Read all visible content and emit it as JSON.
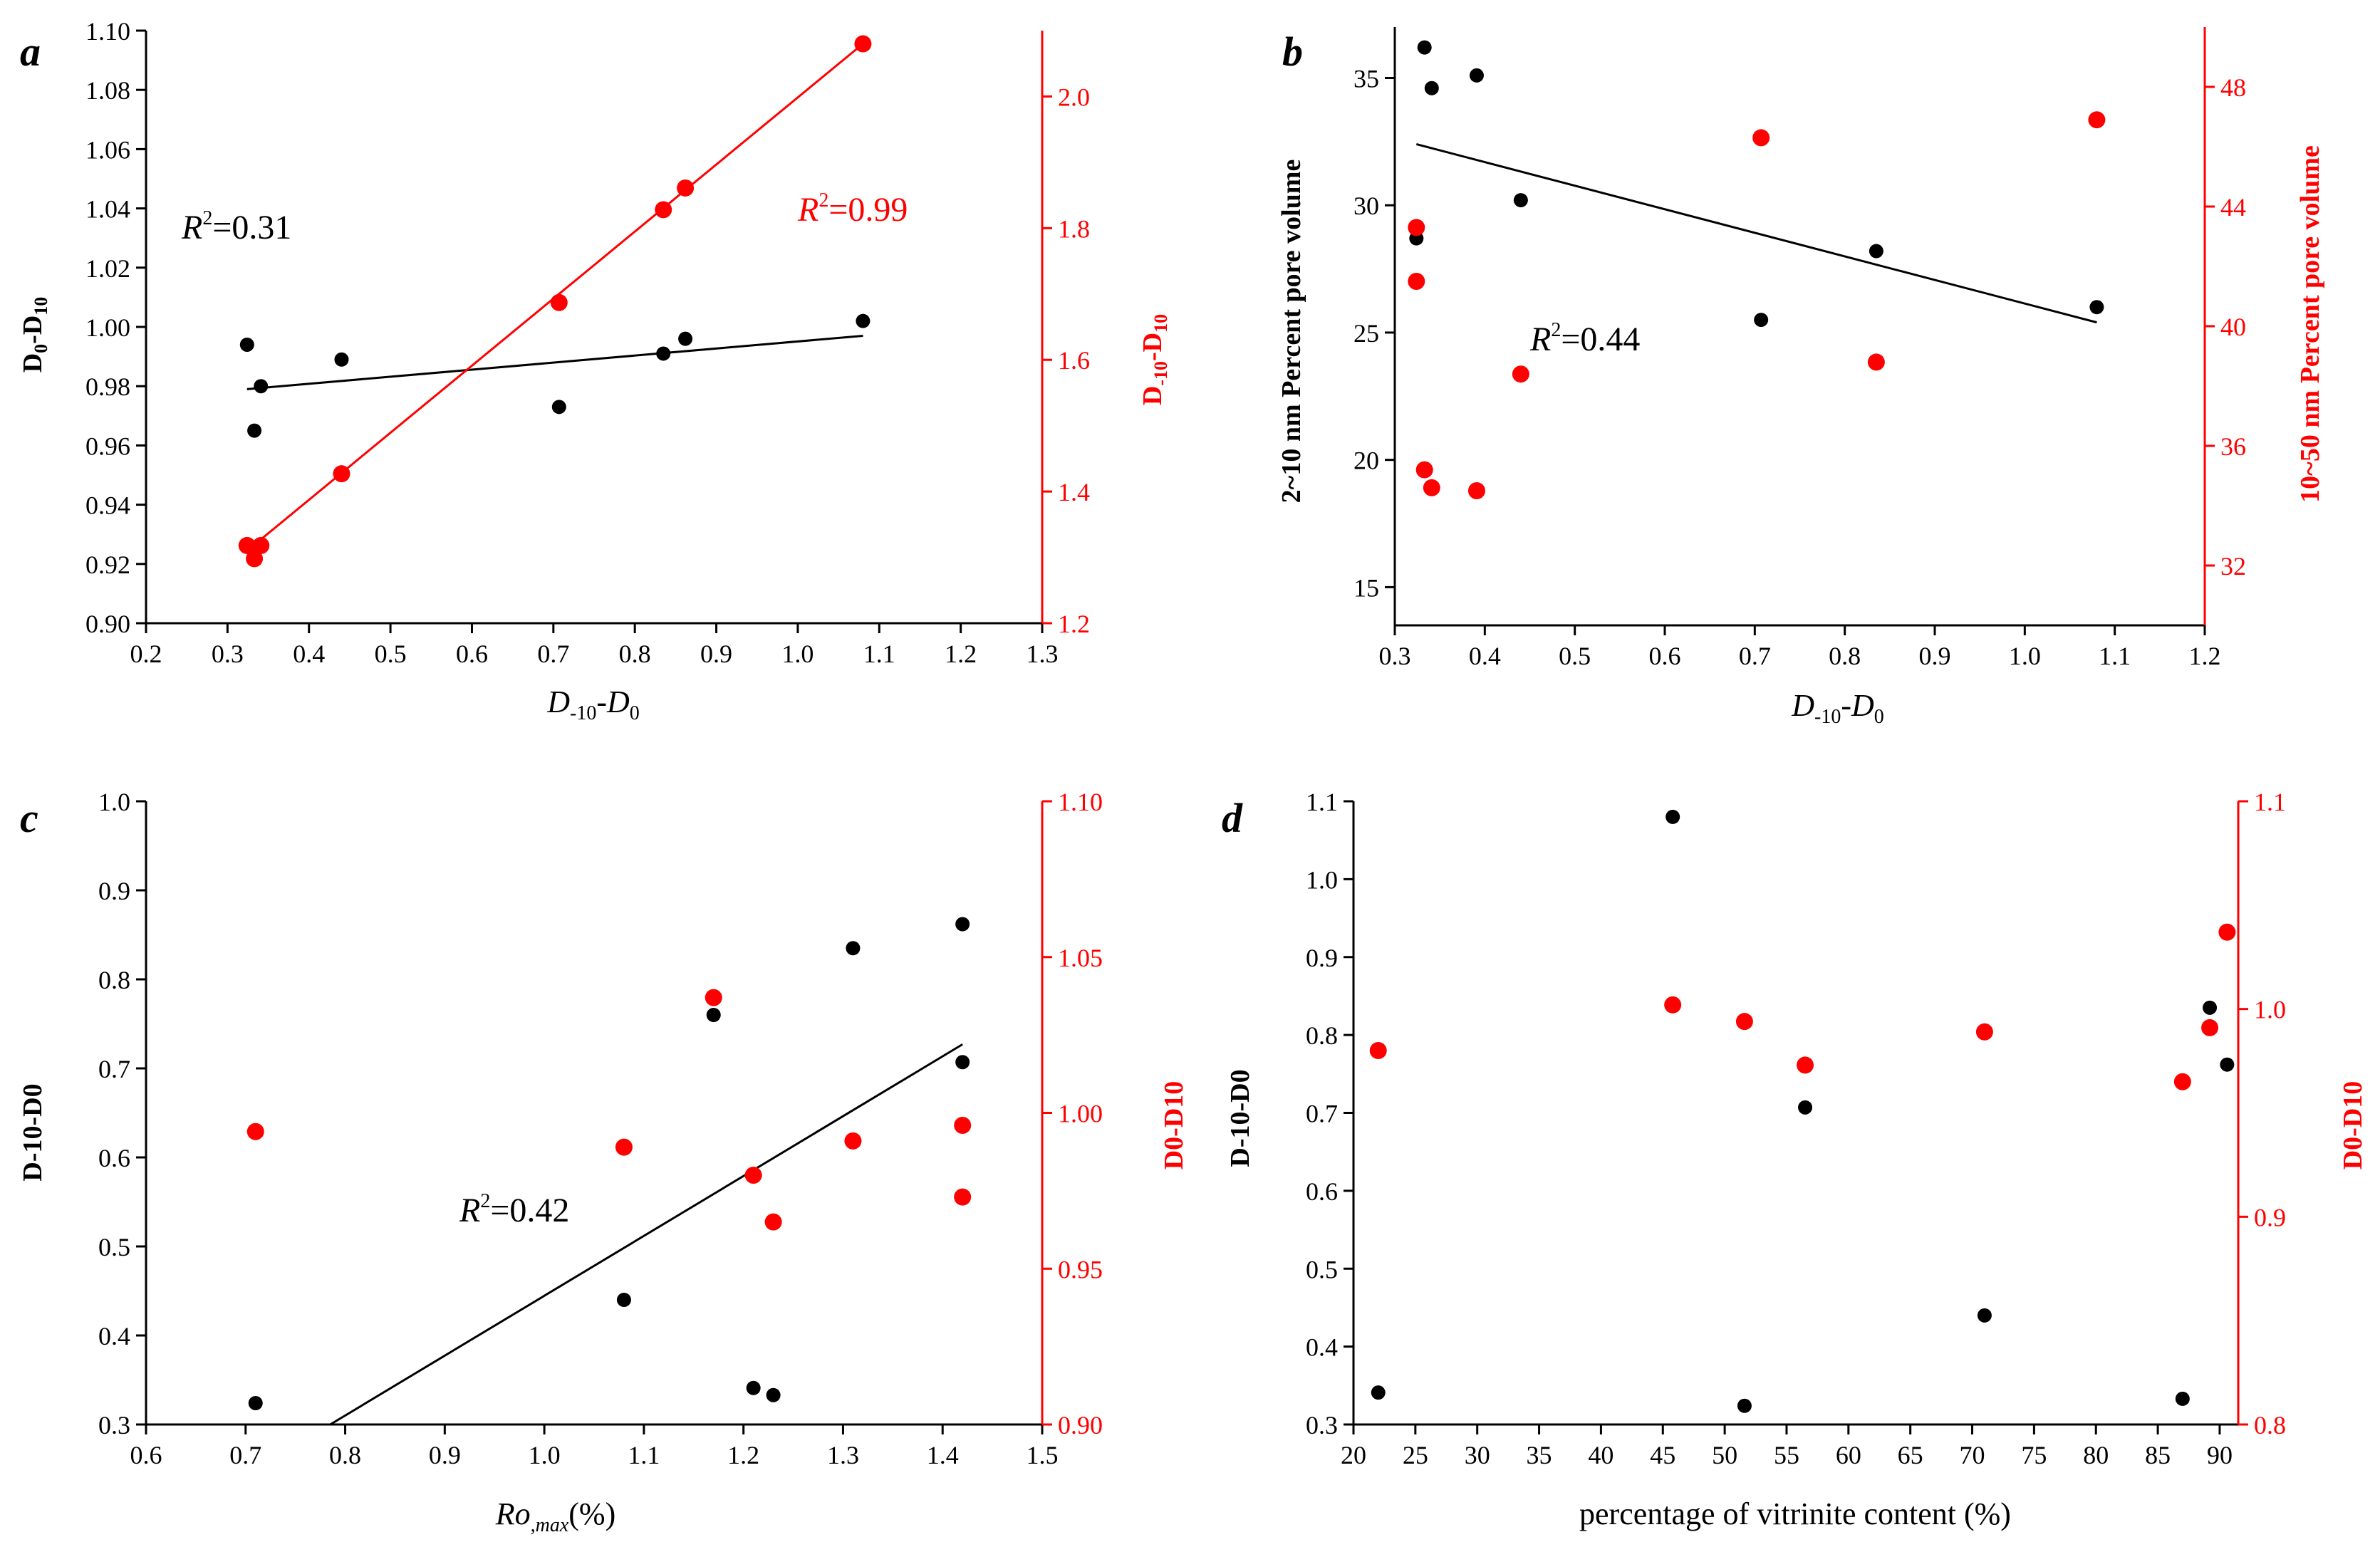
{
  "colors": {
    "primary": "#000000",
    "secondary": "#ff0000"
  },
  "chart_data": [
    {
      "panel": "a",
      "type": "scatter",
      "xlabel": "D-10-D0",
      "ylabel": "D0-D10",
      "y2label": "D-10-D10",
      "xlim": [
        0.2,
        1.3
      ],
      "xticks": [
        0.2,
        0.3,
        0.4,
        0.5,
        0.6,
        0.7,
        0.8,
        0.9,
        1.0,
        1.1,
        1.2,
        1.3
      ],
      "ylim": [
        0.9,
        1.1
      ],
      "yticks": [
        0.9,
        0.92,
        0.94,
        0.96,
        0.98,
        1.0,
        1.02,
        1.04,
        1.06,
        1.08,
        1.1
      ],
      "y2lim": [
        1.2,
        2.1
      ],
      "y2ticks": [
        1.2,
        1.4,
        1.6,
        1.8,
        2.0
      ],
      "series": [
        {
          "name": "D0-D10",
          "axis": "left",
          "color": "#000000",
          "x": [
            0.324,
            0.333,
            0.341,
            0.44,
            0.707,
            0.835,
            0.862,
            1.08
          ],
          "y": [
            0.994,
            0.965,
            0.98,
            0.989,
            0.973,
            0.991,
            0.996,
            1.002
          ],
          "fit": {
            "x": [
              0.324,
              1.08
            ],
            "y": [
              0.979,
              0.997
            ],
            "r2_label": "R",
            "r2_value": "=0.31"
          }
        },
        {
          "name": "D-10-D10",
          "axis": "right",
          "color": "#ff0000",
          "x": [
            0.324,
            0.333,
            0.341,
            0.44,
            0.707,
            0.835,
            0.862,
            1.08
          ],
          "y": [
            1.318,
            1.298,
            1.318,
            1.427,
            1.687,
            1.828,
            1.861,
            2.08
          ],
          "fit": {
            "x": [
              0.324,
              1.08
            ],
            "y": [
              1.31,
              2.08
            ],
            "r2_label": "R",
            "r2_value": "=0.99"
          }
        }
      ]
    },
    {
      "panel": "b",
      "type": "scatter",
      "xlabel": "D-10-D0",
      "ylabel": "2~10 nm Percent pore volume",
      "y2label": "10~50 nm Percent pore volume",
      "xlim": [
        0.3,
        1.2
      ],
      "xticks": [
        0.3,
        0.4,
        0.5,
        0.6,
        0.7,
        0.8,
        0.9,
        1.0,
        1.1,
        1.2
      ],
      "ylim": [
        13.5,
        37
      ],
      "yticks": [
        15,
        20,
        25,
        30,
        35
      ],
      "y2lim": [
        30,
        50
      ],
      "y2ticks": [
        32,
        36,
        40,
        44,
        48
      ],
      "series": [
        {
          "name": "2~10 nm",
          "axis": "left",
          "color": "#000000",
          "x": [
            0.324,
            0.333,
            0.341,
            0.391,
            0.44,
            0.707,
            0.835,
            1.08
          ],
          "y": [
            28.7,
            36.2,
            34.6,
            35.1,
            30.2,
            25.5,
            28.2,
            26.0
          ],
          "fit": {
            "x": [
              0.324,
              1.08
            ],
            "y": [
              32.4,
              25.4
            ],
            "r2_label": "R",
            "r2_value": "=0.44"
          }
        },
        {
          "name": "10~50 nm",
          "axis": "right",
          "color": "#ff0000",
          "x": [
            0.324,
            0.324,
            0.333,
            0.341,
            0.391,
            0.44,
            0.707,
            0.835,
            1.08
          ],
          "y": [
            43.3,
            41.5,
            35.2,
            34.6,
            34.5,
            38.4,
            46.3,
            38.8,
            46.9
          ]
        }
      ]
    },
    {
      "panel": "c",
      "type": "scatter",
      "xlabel": "Ro,max(%)",
      "ylabel": "D-10-D0",
      "y2label": "D0-D10",
      "xlim": [
        0.6,
        1.5
      ],
      "xticks": [
        0.6,
        0.7,
        0.8,
        0.9,
        1.0,
        1.1,
        1.2,
        1.3,
        1.4,
        1.5
      ],
      "ylim": [
        0.3,
        1.0
      ],
      "yticks": [
        0.3,
        0.4,
        0.5,
        0.6,
        0.7,
        0.8,
        0.9,
        1.0
      ],
      "y2lim": [
        0.9,
        1.1
      ],
      "y2ticks": [
        0.9,
        0.95,
        1.0,
        1.05,
        1.1
      ],
      "series": [
        {
          "name": "D-10-D0",
          "axis": "left",
          "color": "#000000",
          "x": [
            0.71,
            1.08,
            1.17,
            1.21,
            1.23,
            1.31,
            1.42,
            1.42
          ],
          "y": [
            0.324,
            0.44,
            0.76,
            0.341,
            0.333,
            0.835,
            0.862,
            0.707
          ],
          "fit": {
            "x": [
              0.785,
              1.42
            ],
            "y": [
              0.3,
              0.727
            ],
            "r2_label": "R",
            "r2_value": "=0.42"
          }
        },
        {
          "name": "D0-D10",
          "axis": "right",
          "color": "#ff0000",
          "x": [
            0.71,
            1.08,
            1.17,
            1.21,
            1.23,
            1.31,
            1.42,
            1.42
          ],
          "y": [
            0.994,
            0.989,
            1.037,
            0.98,
            0.965,
            0.991,
            0.996,
            0.973
          ]
        }
      ]
    },
    {
      "panel": "d",
      "type": "scatter",
      "xlabel": "percentage of vitrinite content (%)",
      "ylabel": "D-10-D0",
      "y2label": "D0-D10",
      "xlim": [
        20,
        91.5
      ],
      "xticks": [
        20,
        25,
        30,
        35,
        40,
        45,
        50,
        55,
        60,
        65,
        70,
        75,
        80,
        85,
        90
      ],
      "ylim": [
        0.3,
        1.1
      ],
      "yticks": [
        0.3,
        0.4,
        0.5,
        0.6,
        0.7,
        0.8,
        0.9,
        1.0,
        1.1
      ],
      "y2lim": [
        0.8,
        1.1
      ],
      "y2ticks": [
        0.8,
        0.9,
        1.0,
        1.1
      ],
      "series": [
        {
          "name": "D-10-D0",
          "axis": "left",
          "color": "#000000",
          "x": [
            22,
            45.8,
            51.6,
            56.5,
            71,
            87,
            89.2,
            90.6
          ],
          "y": [
            0.341,
            1.08,
            0.324,
            0.707,
            0.44,
            0.333,
            0.835,
            0.762
          ]
        },
        {
          "name": "D0-D10",
          "axis": "right",
          "color": "#ff0000",
          "x": [
            22,
            45.8,
            51.6,
            56.5,
            71,
            87,
            89.2,
            90.6
          ],
          "y": [
            0.98,
            1.002,
            0.994,
            0.973,
            0.989,
            0.965,
            0.991,
            1.037
          ]
        }
      ]
    }
  ]
}
